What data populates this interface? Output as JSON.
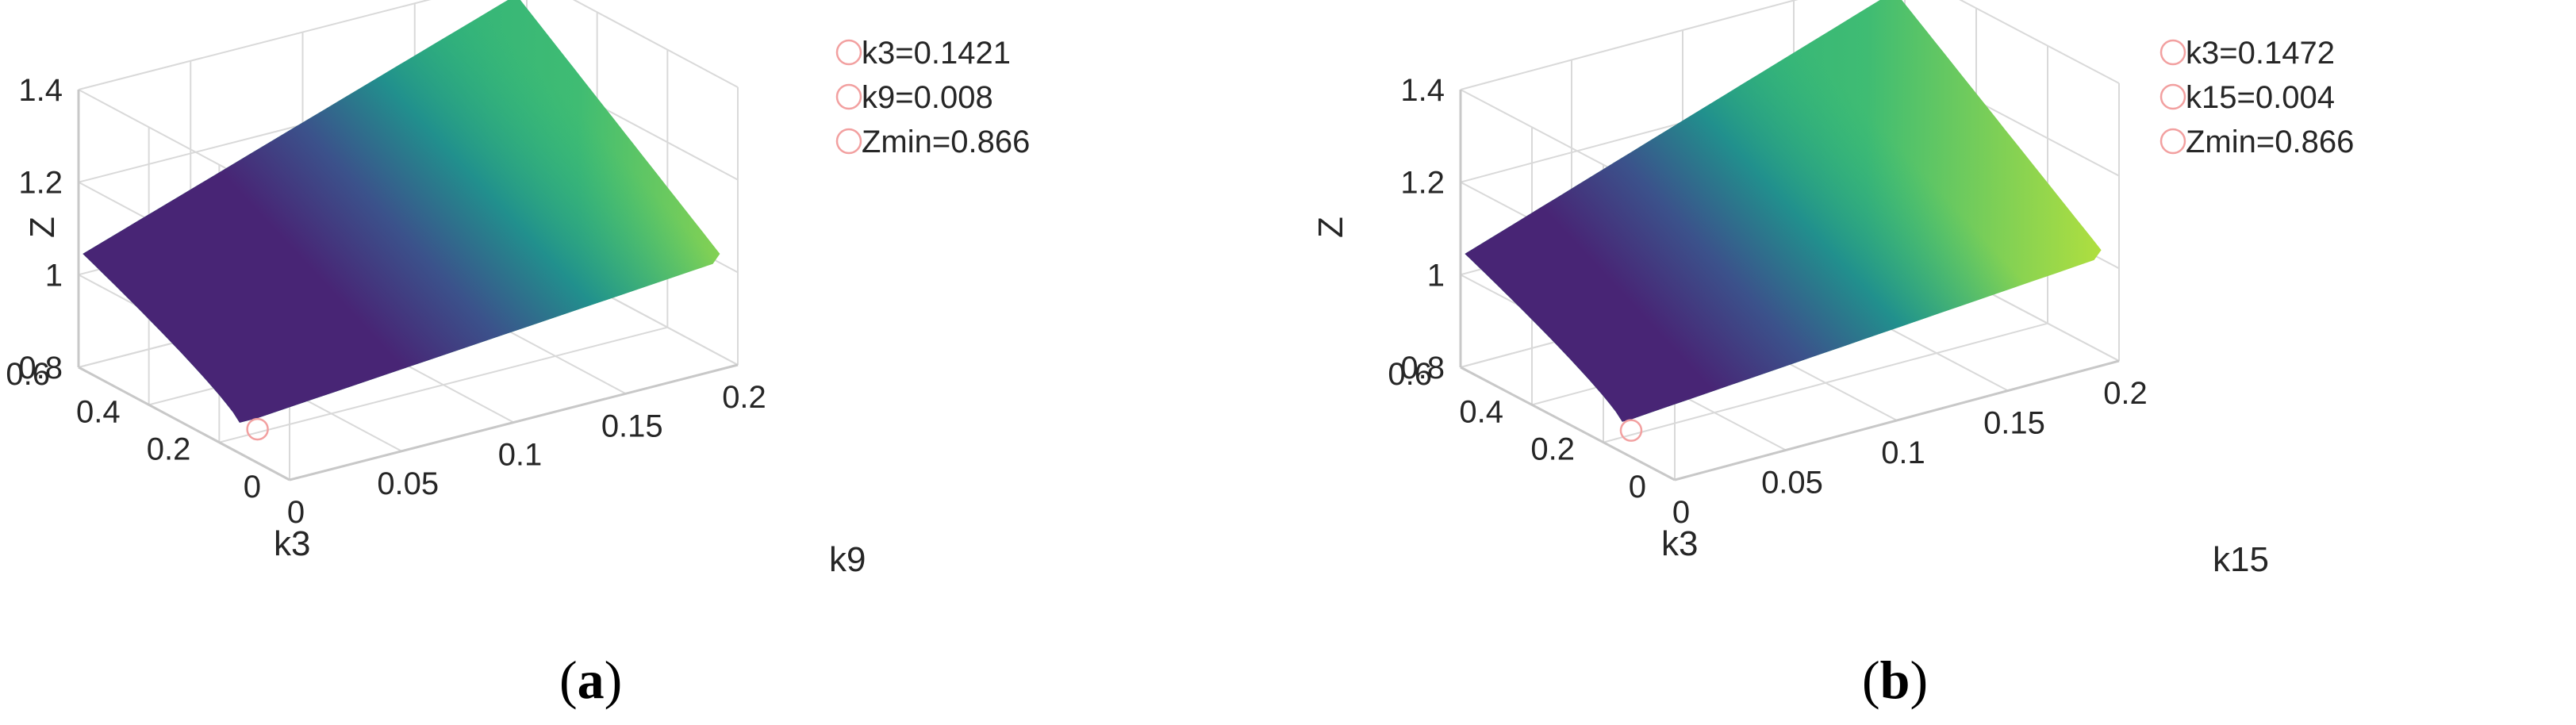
{
  "colors": {
    "axis": "#d9d9d9",
    "text": "#262626",
    "marker": "#f2a0a0",
    "colormap": [
      "#440154",
      "#3b528b",
      "#21908d",
      "#5dc963",
      "#fde725"
    ]
  },
  "chart_data": [
    {
      "type": "surface",
      "caption_letter": "a",
      "xlabel": "k9",
      "ylabel": "k3",
      "zlabel": "Z",
      "x_ticks": [
        "0",
        "0.05",
        "0.1",
        "0.15",
        "0.2"
      ],
      "y_ticks": [
        "0",
        "0.2",
        "0.4",
        "0.6"
      ],
      "z_ticks": [
        "0.8",
        "1",
        "1.2",
        "1.4"
      ],
      "xlim": [
        0,
        0.2
      ],
      "ylim": [
        0,
        0.6
      ],
      "zlim": [
        0.8,
        1.4
      ],
      "minimum": {
        "k3": 0.1421,
        "kx": 0.008,
        "z": 0.866
      },
      "legend": [
        "k3=0.1421",
        "k9=0.008",
        "Zmin=0.866"
      ],
      "legend_position": "top-right",
      "grid": true,
      "colormap": "parula"
    },
    {
      "type": "surface",
      "caption_letter": "b",
      "xlabel": "k15",
      "ylabel": "k3",
      "zlabel": "Z",
      "x_ticks": [
        "0",
        "0.05",
        "0.1",
        "0.15",
        "0.2"
      ],
      "y_ticks": [
        "0",
        "0.2",
        "0.4",
        "0.6"
      ],
      "z_ticks": [
        "0.8",
        "1",
        "1.2",
        "1.4"
      ],
      "xlim": [
        0,
        0.2
      ],
      "ylim": [
        0,
        0.6
      ],
      "zlim": [
        0.8,
        1.4
      ],
      "minimum": {
        "k3": 0.1472,
        "kx": 0.004,
        "z": 0.866
      },
      "legend": [
        "k3=0.1472",
        "k15=0.004",
        "Zmin=0.866"
      ],
      "legend_position": "top-right",
      "grid": true,
      "colormap": "parula"
    }
  ]
}
